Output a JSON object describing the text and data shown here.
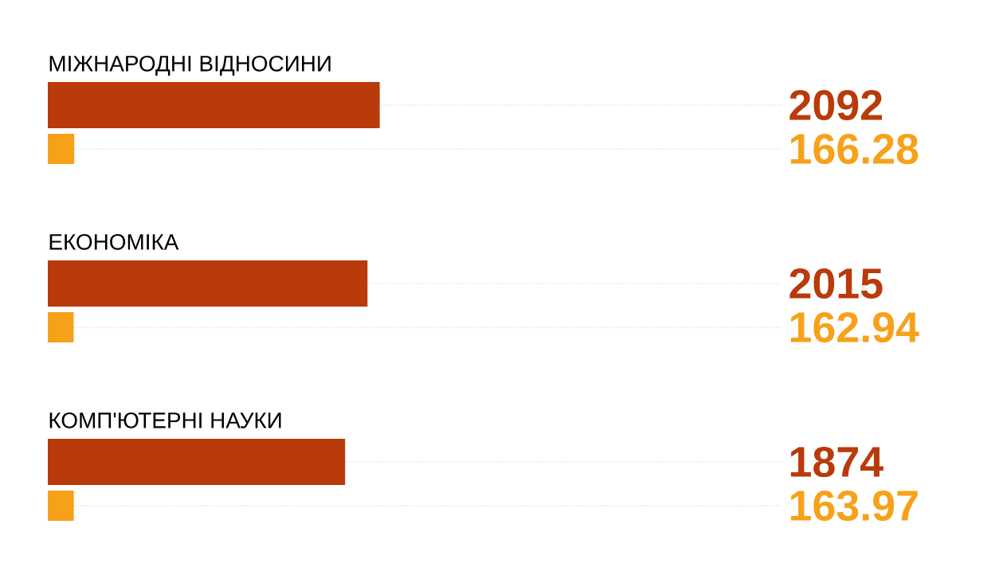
{
  "chart_data": {
    "type": "bar",
    "orientation": "horizontal",
    "categories": [
      "МІЖНАРОДНІ ВІДНОСИНИ",
      "ЕКОНОМІКА",
      "КОМП'ЮТЕРНІ НАУКИ"
    ],
    "series": [
      {
        "color": "#b93a0a",
        "values": [
          2092,
          2015,
          1874
        ],
        "value_labels": [
          "2092",
          "2015",
          "1874"
        ]
      },
      {
        "color": "#f7a11a",
        "values": [
          166.28,
          162.94,
          163.97
        ],
        "value_labels": [
          "166.28",
          "162.94",
          "163.97"
        ]
      }
    ]
  }
}
